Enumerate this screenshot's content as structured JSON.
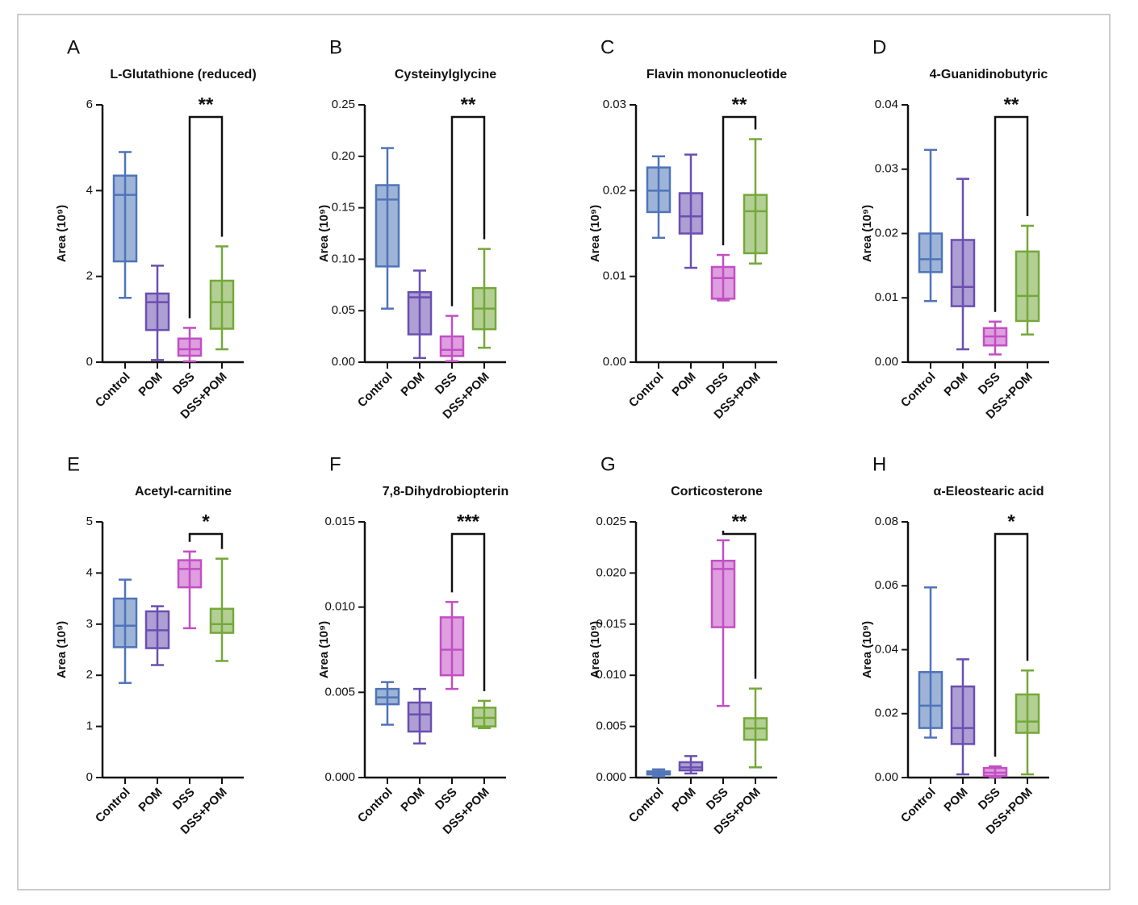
{
  "chart_data": [
    {
      "type": "box",
      "panel": "A",
      "title": "L-Glutathione (reduced)",
      "ylabel": "Area (10⁹)",
      "categories": [
        "Control",
        "POM",
        "DSS",
        "DSS+POM"
      ],
      "colors": [
        "#4f74b8",
        "#6a4fb0",
        "#c24fc4",
        "#74a83a"
      ],
      "values": [
        {
          "min": 1.5,
          "q1": 2.35,
          "median": 3.9,
          "q3": 4.35,
          "max": 4.9
        },
        {
          "min": 0.05,
          "q1": 0.75,
          "median": 1.4,
          "q3": 1.6,
          "max": 2.25
        },
        {
          "min": 0.02,
          "q1": 0.15,
          "median": 0.3,
          "q3": 0.55,
          "max": 0.8
        },
        {
          "min": 0.3,
          "q1": 0.78,
          "median": 1.4,
          "q3": 1.9,
          "max": 2.7
        }
      ],
      "ylim": [
        0,
        6
      ],
      "yticks": [
        0,
        2,
        4,
        6
      ],
      "significance": "**"
    },
    {
      "type": "box",
      "panel": "B",
      "title": "Cysteinylglycine",
      "ylabel": "Area (10⁹)",
      "categories": [
        "Control",
        "POM",
        "DSS",
        "DSS+POM"
      ],
      "colors": [
        "#4f74b8",
        "#6a4fb0",
        "#c24fc4",
        "#74a83a"
      ],
      "values": [
        {
          "min": 0.052,
          "q1": 0.093,
          "median": 0.158,
          "q3": 0.172,
          "max": 0.208
        },
        {
          "min": 0.004,
          "q1": 0.027,
          "median": 0.063,
          "q3": 0.068,
          "max": 0.089
        },
        {
          "min": 0.001,
          "q1": 0.006,
          "median": 0.012,
          "q3": 0.025,
          "max": 0.045
        },
        {
          "min": 0.014,
          "q1": 0.032,
          "median": 0.052,
          "q3": 0.072,
          "max": 0.11
        }
      ],
      "ylim": [
        0,
        0.25
      ],
      "yticks": [
        {
          "value": 0,
          "label": "0.00"
        },
        0.05,
        {
          "value": 0.1,
          "label": "0.10"
        },
        0.15,
        {
          "value": 0.2,
          "label": "0.20"
        },
        0.25
      ],
      "significance": "**"
    },
    {
      "type": "box",
      "panel": "C",
      "title": "Flavin mononucleotide",
      "ylabel": "Area (10⁹)",
      "categories": [
        "Control",
        "POM",
        "DSS",
        "DSS+POM"
      ],
      "colors": [
        "#4f74b8",
        "#6a4fb0",
        "#c24fc4",
        "#74a83a"
      ],
      "values": [
        {
          "min": 0.0145,
          "q1": 0.0175,
          "median": 0.02,
          "q3": 0.0227,
          "max": 0.024
        },
        {
          "min": 0.011,
          "q1": 0.015,
          "median": 0.017,
          "q3": 0.0197,
          "max": 0.0242
        },
        {
          "min": 0.0072,
          "q1": 0.0074,
          "median": 0.0098,
          "q3": 0.0111,
          "max": 0.0125
        },
        {
          "min": 0.0115,
          "q1": 0.0127,
          "median": 0.0176,
          "q3": 0.0195,
          "max": 0.026
        }
      ],
      "ylim": [
        0,
        0.03
      ],
      "yticks": [
        {
          "value": 0,
          "label": "0.00"
        },
        0.01,
        0.02,
        0.03
      ],
      "significance": "**"
    },
    {
      "type": "box",
      "panel": "D",
      "title": "4-Guanidinobutyric",
      "ylabel": "Area (10⁹)",
      "categories": [
        "Control",
        "POM",
        "DSS",
        "DSS+POM"
      ],
      "colors": [
        "#4f74b8",
        "#6a4fb0",
        "#c24fc4",
        "#74a83a"
      ],
      "values": [
        {
          "min": 0.0095,
          "q1": 0.014,
          "median": 0.016,
          "q3": 0.02,
          "max": 0.033
        },
        {
          "min": 0.002,
          "q1": 0.0087,
          "median": 0.0117,
          "q3": 0.019,
          "max": 0.0285
        },
        {
          "min": 0.0012,
          "q1": 0.0026,
          "median": 0.004,
          "q3": 0.0053,
          "max": 0.0063
        },
        {
          "min": 0.0043,
          "q1": 0.0064,
          "median": 0.0103,
          "q3": 0.0172,
          "max": 0.0212
        }
      ],
      "ylim": [
        0,
        0.04
      ],
      "yticks": [
        {
          "value": 0,
          "label": "0.00"
        },
        0.01,
        0.02,
        0.03,
        0.04
      ],
      "significance": "**"
    },
    {
      "type": "box",
      "panel": "E",
      "title": "Acetyl-carnitine",
      "ylabel": "Area (10⁹)",
      "categories": [
        "Control",
        "POM",
        "DSS",
        "DSS+POM"
      ],
      "colors": [
        "#4f74b8",
        "#6a4fb0",
        "#c24fc4",
        "#74a83a"
      ],
      "values": [
        {
          "min": 1.85,
          "q1": 2.55,
          "median": 2.97,
          "q3": 3.5,
          "max": 3.87
        },
        {
          "min": 2.2,
          "q1": 2.53,
          "median": 2.88,
          "q3": 3.25,
          "max": 3.35
        },
        {
          "min": 2.92,
          "q1": 3.72,
          "median": 4.08,
          "q3": 4.25,
          "max": 4.42
        },
        {
          "min": 2.28,
          "q1": 2.83,
          "median": 3.0,
          "q3": 3.3,
          "max": 4.28
        }
      ],
      "ylim": [
        0,
        5
      ],
      "yticks": [
        0,
        1,
        2,
        3,
        4,
        5
      ],
      "significance": "*"
    },
    {
      "type": "box",
      "panel": "F",
      "title": "7,8-Dihydrobiopterin",
      "ylabel": "Area (10⁹)",
      "categories": [
        "Control",
        "POM",
        "DSS",
        "DSS+POM"
      ],
      "colors": [
        "#4f74b8",
        "#6a4fb0",
        "#c24fc4",
        "#74a83a"
      ],
      "values": [
        {
          "min": 0.0031,
          "q1": 0.0043,
          "median": 0.0047,
          "q3": 0.0052,
          "max": 0.0056
        },
        {
          "min": 0.002,
          "q1": 0.0027,
          "median": 0.0037,
          "q3": 0.0044,
          "max": 0.0052
        },
        {
          "min": 0.0052,
          "q1": 0.006,
          "median": 0.0075,
          "q3": 0.0094,
          "max": 0.0103
        },
        {
          "min": 0.0029,
          "q1": 0.003,
          "median": 0.0035,
          "q3": 0.0041,
          "max": 0.0045
        }
      ],
      "ylim": [
        0,
        0.015
      ],
      "yticks": [
        {
          "value": 0,
          "label": "0.000"
        },
        0.005,
        {
          "value": 0.01,
          "label": "0.010"
        },
        0.015
      ],
      "significance": "***"
    },
    {
      "type": "box",
      "panel": "G",
      "title": "Corticosterone",
      "ylabel": "Area (10⁹)",
      "categories": [
        "Control",
        "POM",
        "DSS",
        "DSS+POM"
      ],
      "colors": [
        "#4f74b8",
        "#6a4fb0",
        "#c24fc4",
        "#74a83a"
      ],
      "values": [
        {
          "min": 0.0001,
          "q1": 0.0003,
          "median": 0.0005,
          "q3": 0.0006,
          "max": 0.0008
        },
        {
          "min": 0.0004,
          "q1": 0.0007,
          "median": 0.001,
          "q3": 0.0015,
          "max": 0.0021
        },
        {
          "min": 0.007,
          "q1": 0.0147,
          "median": 0.0204,
          "q3": 0.0212,
          "max": 0.0232
        },
        {
          "min": 0.001,
          "q1": 0.0037,
          "median": 0.0048,
          "q3": 0.0058,
          "max": 0.0087
        }
      ],
      "ylim": [
        0,
        0.025
      ],
      "yticks": [
        {
          "value": 0,
          "label": "0.000"
        },
        0.005,
        {
          "value": 0.01,
          "label": "0.010"
        },
        0.015,
        {
          "value": 0.02,
          "label": "0.020"
        },
        0.025
      ],
      "significance": "**"
    },
    {
      "type": "box",
      "panel": "H",
      "title": "α-Eleostearic acid",
      "ylabel": "Area (10⁹)",
      "categories": [
        "Control",
        "POM",
        "DSS",
        "DSS+POM"
      ],
      "colors": [
        "#4f74b8",
        "#6a4fb0",
        "#c24fc4",
        "#74a83a"
      ],
      "values": [
        {
          "min": 0.0125,
          "q1": 0.0155,
          "median": 0.0225,
          "q3": 0.033,
          "max": 0.0595
        },
        {
          "min": 0.001,
          "q1": 0.0105,
          "median": 0.0155,
          "q3": 0.0285,
          "max": 0.037
        },
        {
          "min": 0.0001,
          "q1": 0.0005,
          "median": 0.0015,
          "q3": 0.003,
          "max": 0.0035
        },
        {
          "min": 0.001,
          "q1": 0.014,
          "median": 0.0175,
          "q3": 0.026,
          "max": 0.0335
        }
      ],
      "ylim": [
        0,
        0.08
      ],
      "yticks": [
        {
          "value": 0,
          "label": "0.00"
        },
        0.02,
        0.04,
        0.06,
        0.08
      ],
      "significance": "*"
    }
  ]
}
